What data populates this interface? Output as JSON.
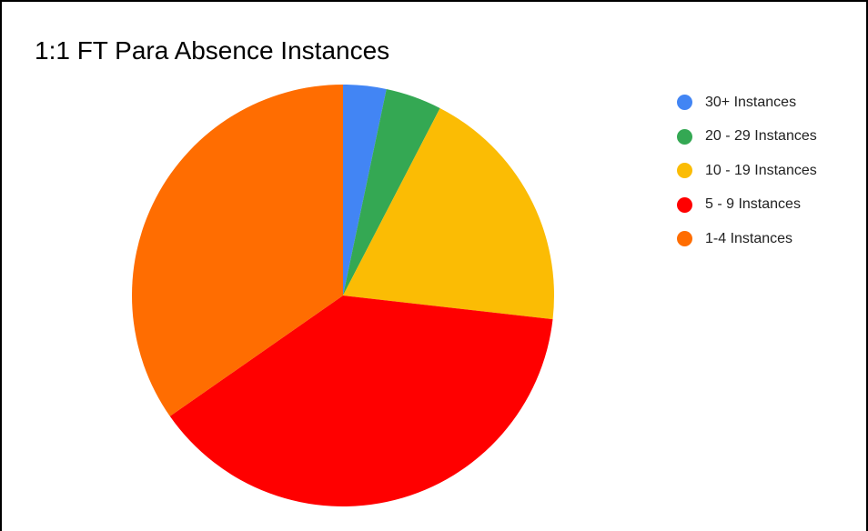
{
  "chart_data": {
    "type": "pie",
    "title": "1:1 FT Para Absence Instances",
    "legend_position": "right",
    "start_angle": "top",
    "direction": "clockwise",
    "slices": [
      {
        "label": "30+ Instances",
        "value": 3.3,
        "color": "#4285F4"
      },
      {
        "label": "20 - 29 Instances",
        "value": 4.3,
        "color": "#34A853"
      },
      {
        "label": "10 - 19 Instances",
        "value": 19.2,
        "color": "#FBBC04"
      },
      {
        "label": "5 - 9 Instances",
        "value": 38.5,
        "color": "#FF0000"
      },
      {
        "label": "1-4 Instances",
        "value": 34.7,
        "color": "#FF6D01"
      }
    ]
  }
}
